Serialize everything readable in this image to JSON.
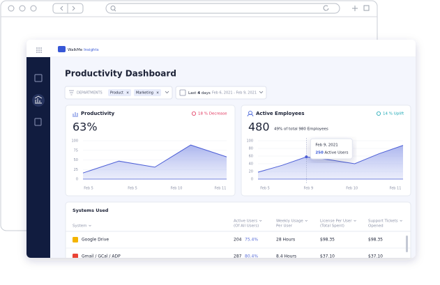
{
  "brand": {
    "name": "WalkMe",
    "product": "Insights"
  },
  "header": {
    "title": "Productivity Dashboard"
  },
  "filters": {
    "departments_label": "DEPARTMENTS",
    "chips": [
      "Product",
      "Marketing"
    ],
    "date": {
      "last": "Last",
      "count": "4",
      "unit": "days",
      "range": "Feb 6, 2021 - Feb 9, 2021"
    }
  },
  "cards": [
    {
      "title": "Productivity",
      "badge": "18 % Decrease",
      "value": "63%"
    },
    {
      "title": "Active Employees",
      "badge": "14 % Uplift",
      "value": "480",
      "note": "49% of total 980 Employees"
    }
  ],
  "chart_data": [
    {
      "type": "area",
      "x_tick_labels": [
        "Feb 5",
        "Feb 5",
        "Feb 10",
        "Feb 11"
      ],
      "values": [
        16,
        47,
        31,
        89,
        58
      ],
      "color": "#4d5fd6",
      "ylim": [
        0,
        100
      ],
      "yticks": [
        0,
        25,
        50,
        75,
        100
      ],
      "grid": true
    },
    {
      "type": "area",
      "x_tick_labels": [
        "Feb 5",
        "Feb 9",
        "Feb 10",
        "Feb 11"
      ],
      "values": [
        18,
        36,
        58,
        50,
        40,
        66,
        88
      ],
      "color": "#4d5fd6",
      "ylim": [
        0,
        100
      ],
      "yticks": [
        0,
        20,
        40,
        60,
        80,
        100
      ],
      "grid": true,
      "tooltip": {
        "title": "Feb 9, 2021",
        "value": "250",
        "label": "Active Users"
      }
    }
  ],
  "table": {
    "title": "Systems Used",
    "columns": [
      "System",
      "Active Users",
      "Weekly Usage",
      "License Per User",
      "Support Tickets"
    ],
    "subcolumns": [
      "(Of All Users)",
      "Per User",
      "(Total Spent)",
      "Opened"
    ],
    "rows": [
      [
        "Google Drive",
        "204",
        "75.4%",
        "28 Hours",
        "$98.35",
        "$98.35"
      ],
      [
        "Gmail / GCal / ADP",
        "287",
        "80.4%",
        "8.4 Hours",
        "$37.10",
        "$37.10"
      ]
    ]
  }
}
